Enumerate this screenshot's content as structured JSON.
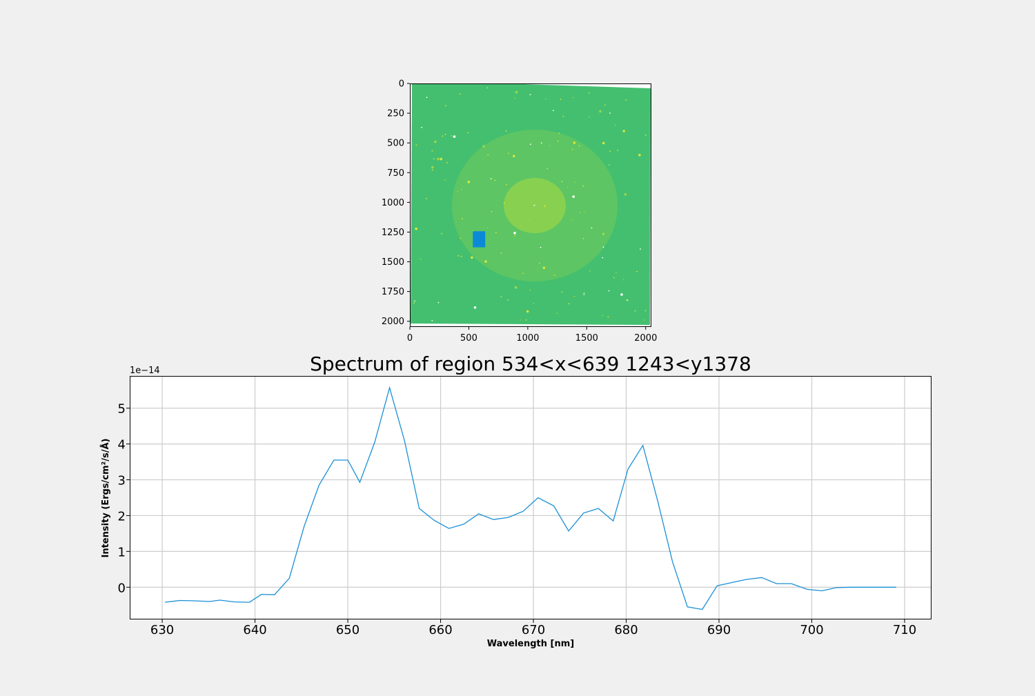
{
  "chart_data": [
    {
      "type": "image",
      "title": "",
      "x_ticks": [
        "0",
        "500",
        "1000",
        "1500",
        "2000"
      ],
      "y_ticks": [
        "0",
        "250",
        "500",
        "750",
        "1000",
        "1250",
        "1500",
        "1750",
        "2000"
      ],
      "xlim": [
        0,
        2048
      ],
      "ylim": [
        2048,
        0
      ],
      "image_extent": 2048,
      "background_color": "#44bf70",
      "region": {
        "x_min": 534,
        "x_max": 639,
        "y_min": 1243,
        "y_max": 1378,
        "color": "#0a8ad6"
      }
    },
    {
      "type": "line",
      "title": "Spectrum of region 534<x<639 1243<y1378",
      "xlabel": "Wavelength [nm]",
      "ylabel": "Intensity (Ergs/cm²/s/Å)",
      "offset_text": "1e−14",
      "xlim": [
        626.5,
        712.9
      ],
      "ylim": [
        -0.9,
        5.9
      ],
      "x_ticks": [
        630,
        640,
        650,
        660,
        670,
        680,
        690,
        700,
        710
      ],
      "y_ticks": [
        0,
        1,
        2,
        3,
        4,
        5
      ],
      "grid": true,
      "series": [
        {
          "color": "#1a8fd6",
          "x": [
            630.3,
            631.9,
            633.5,
            635.1,
            636.2,
            637.8,
            639.4,
            640.7,
            642.1,
            643.7,
            645.3,
            646.9,
            648.5,
            650.0,
            651.3,
            652.9,
            654.5,
            656.1,
            657.7,
            659.3,
            660.9,
            662.5,
            664.1,
            665.7,
            667.3,
            668.9,
            670.5,
            672.2,
            673.8,
            675.4,
            677.0,
            678.6,
            680.2,
            681.8,
            683.4,
            685.0,
            686.6,
            688.2,
            689.8,
            691.4,
            693.0,
            694.6,
            696.2,
            697.8,
            699.5,
            701.1,
            702.7,
            704.3,
            705.9,
            707.5,
            709.1
          ],
          "values": [
            -0.42,
            -0.37,
            -0.38,
            -0.4,
            -0.36,
            -0.41,
            -0.42,
            -0.2,
            -0.21,
            0.25,
            1.7,
            2.85,
            3.55,
            3.55,
            2.93,
            4.05,
            5.57,
            4.1,
            2.2,
            1.87,
            1.64,
            1.76,
            2.05,
            1.89,
            1.95,
            2.12,
            2.5,
            2.27,
            1.57,
            2.07,
            2.2,
            1.85,
            3.3,
            3.96,
            2.4,
            0.7,
            -0.55,
            -0.62,
            0.04,
            0.13,
            0.22,
            0.27,
            0.1,
            0.1,
            -0.06,
            -0.1,
            -0.01,
            0.0,
            0.0,
            0.0,
            0.0
          ]
        }
      ]
    }
  ]
}
